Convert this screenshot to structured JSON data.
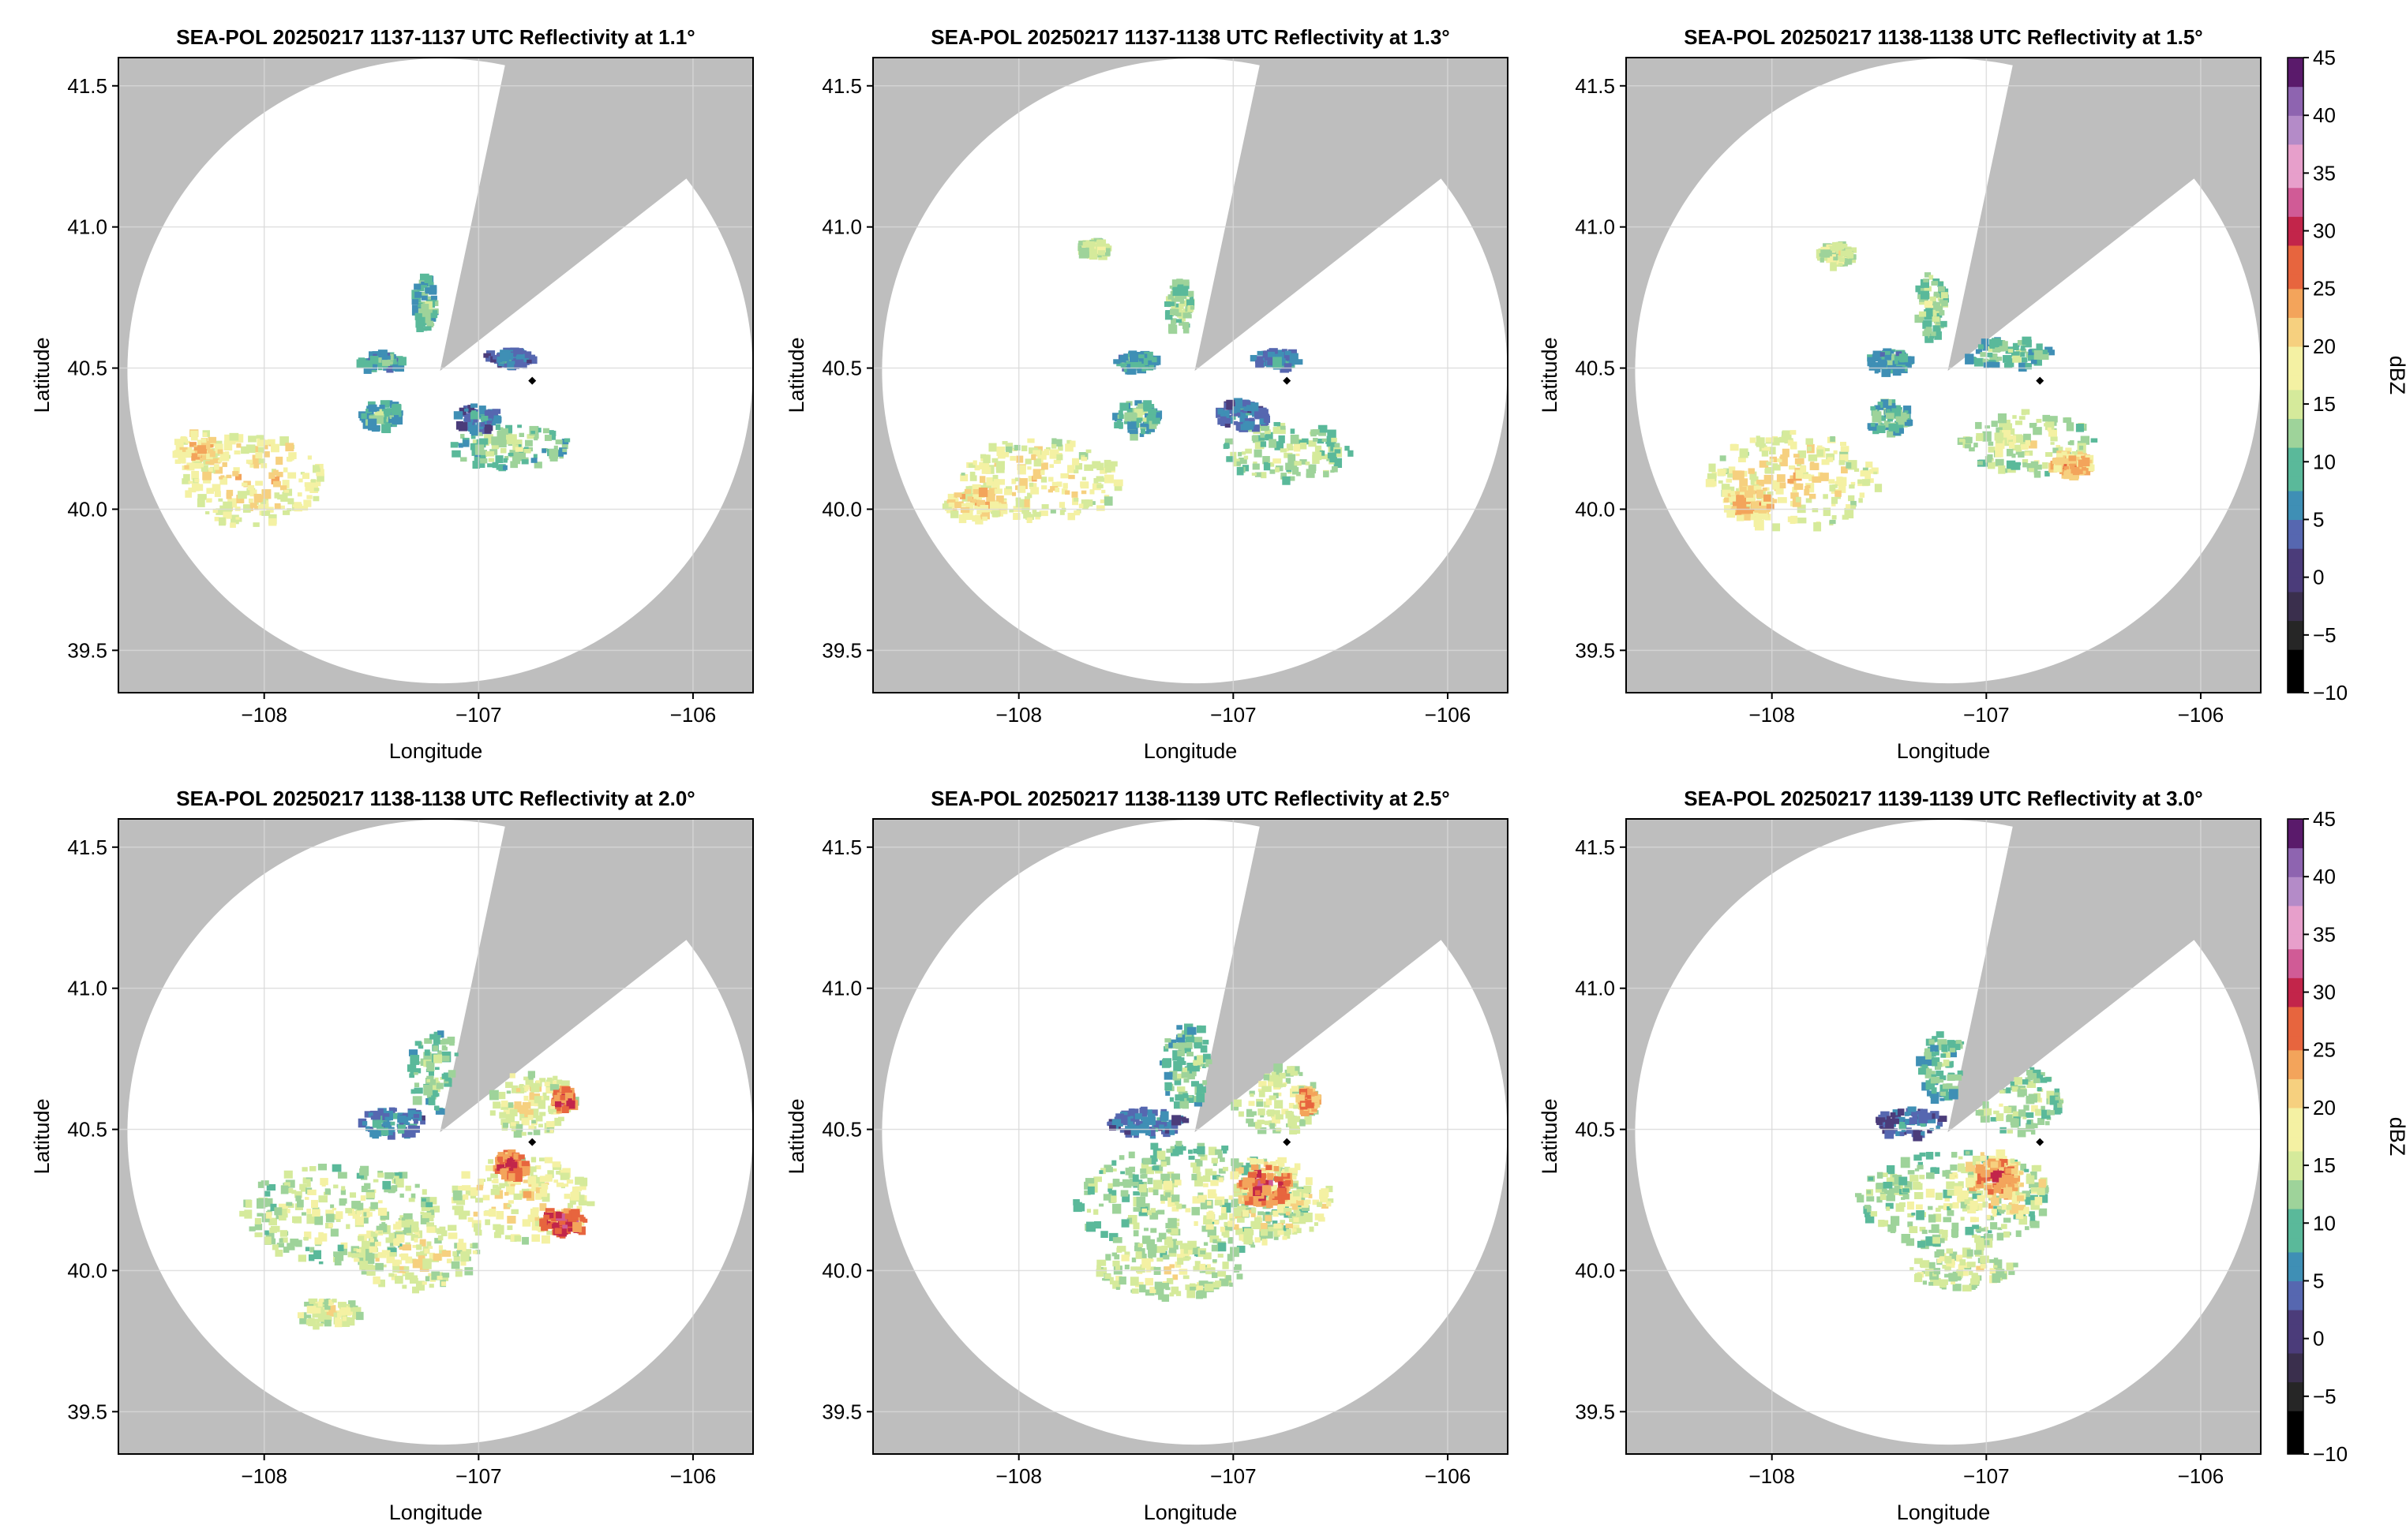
{
  "figure": {
    "xlabel": "Longitude",
    "ylabel": "Latitude",
    "x_ticks": [
      -108,
      -107,
      -106
    ],
    "x_tick_labels": [
      "−108",
      "−107",
      "−106"
    ],
    "y_ticks": [
      39.5,
      40.0,
      40.5,
      41.0,
      41.5
    ],
    "y_tick_labels": [
      "39.5",
      "40.0",
      "40.5",
      "41.0",
      "41.5"
    ],
    "xlim": [
      -108.68,
      -105.72
    ],
    "ylim": [
      39.35,
      41.6
    ],
    "radar_location": [
      -106.75,
      40.455
    ],
    "colors": {
      "background_outside_range": "#bebebe",
      "plot_background": "#ffffff",
      "grid": "#d9d9d9"
    }
  },
  "colorbar": {
    "label": "dBZ",
    "range": [
      -10,
      45
    ],
    "ticks": [
      -10,
      -5,
      0,
      5,
      10,
      15,
      20,
      25,
      30,
      35,
      40,
      45
    ],
    "tick_labels": [
      "−10",
      "−5",
      "0",
      "5",
      "10",
      "15",
      "20",
      "25",
      "30",
      "35",
      "40",
      "45"
    ],
    "palette": [
      "#000000",
      "#262626",
      "#3a2f4d",
      "#4b3c7a",
      "#5667b0",
      "#3f8fb5",
      "#5ab99a",
      "#9ed39a",
      "#d5ea9b",
      "#f4f1a3",
      "#f6d07f",
      "#f3a45b",
      "#e7653e",
      "#c2254a",
      "#d05b96",
      "#e79fcb",
      "#b48bc8",
      "#8e64b0",
      "#5a1a6b"
    ]
  },
  "chart_data": [
    {
      "type": "heatmap",
      "title": "SEA-POL 20250217 1137-1137 UTC Reflectivity at 1.1°",
      "elevation_deg": 1.1,
      "xlabel": "Longitude",
      "ylabel": "Latitude",
      "xlim": [
        -108.68,
        -105.72
      ],
      "ylim": [
        39.35,
        41.6
      ],
      "value_range_dBZ": [
        -10,
        45
      ],
      "echo_regions": [
        {
          "lon": -108.05,
          "lat": 40.1,
          "rx": 0.32,
          "ry": 0.17,
          "dbz": 16
        },
        {
          "lon": -108.3,
          "lat": 40.2,
          "rx": 0.12,
          "ry": 0.07,
          "dbz": 17
        },
        {
          "lon": -106.85,
          "lat": 40.22,
          "rx": 0.28,
          "ry": 0.08,
          "dbz": 9
        },
        {
          "lon": -107.0,
          "lat": 40.32,
          "rx": 0.1,
          "ry": 0.05,
          "dbz": 3
        },
        {
          "lon": -107.45,
          "lat": 40.33,
          "rx": 0.09,
          "ry": 0.05,
          "dbz": 7
        },
        {
          "lon": -107.25,
          "lat": 40.72,
          "rx": 0.05,
          "ry": 0.1,
          "dbz": 8
        },
        {
          "lon": -106.85,
          "lat": 40.53,
          "rx": 0.12,
          "ry": 0.03,
          "dbz": 3
        },
        {
          "lon": -107.45,
          "lat": 40.52,
          "rx": 0.1,
          "ry": 0.03,
          "dbz": 6
        }
      ]
    },
    {
      "type": "heatmap",
      "title": "SEA-POL 20250217 1137-1138 UTC Reflectivity at 1.3°",
      "elevation_deg": 1.3,
      "xlabel": "Longitude",
      "ylabel": "Latitude",
      "xlim": [
        -108.68,
        -105.72
      ],
      "ylim": [
        39.35,
        41.6
      ],
      "value_range_dBZ": [
        -10,
        45
      ],
      "echo_regions": [
        {
          "lon": -107.9,
          "lat": 40.1,
          "rx": 0.38,
          "ry": 0.15,
          "dbz": 15
        },
        {
          "lon": -108.2,
          "lat": 40.02,
          "rx": 0.14,
          "ry": 0.06,
          "dbz": 18
        },
        {
          "lon": -106.75,
          "lat": 40.2,
          "rx": 0.3,
          "ry": 0.1,
          "dbz": 11
        },
        {
          "lon": -106.95,
          "lat": 40.33,
          "rx": 0.12,
          "ry": 0.05,
          "dbz": 3
        },
        {
          "lon": -107.45,
          "lat": 40.32,
          "rx": 0.1,
          "ry": 0.06,
          "dbz": 8
        },
        {
          "lon": -107.25,
          "lat": 40.72,
          "rx": 0.06,
          "ry": 0.1,
          "dbz": 10
        },
        {
          "lon": -106.8,
          "lat": 40.53,
          "rx": 0.12,
          "ry": 0.03,
          "dbz": 4
        },
        {
          "lon": -107.45,
          "lat": 40.52,
          "rx": 0.1,
          "ry": 0.03,
          "dbz": 6
        },
        {
          "lon": -107.65,
          "lat": 40.92,
          "rx": 0.07,
          "ry": 0.03,
          "dbz": 12
        }
      ]
    },
    {
      "type": "heatmap",
      "title": "SEA-POL 20250217 1138-1138 UTC Reflectivity at 1.5°",
      "elevation_deg": 1.5,
      "xlabel": "Longitude",
      "ylabel": "Latitude",
      "xlim": [
        -108.68,
        -105.72
      ],
      "ylim": [
        39.35,
        41.6
      ],
      "value_range_dBZ": [
        -10,
        45
      ],
      "echo_regions": [
        {
          "lon": -107.9,
          "lat": 40.1,
          "rx": 0.4,
          "ry": 0.17,
          "dbz": 15
        },
        {
          "lon": -108.1,
          "lat": 40.02,
          "rx": 0.12,
          "ry": 0.06,
          "dbz": 19
        },
        {
          "lon": -106.8,
          "lat": 40.23,
          "rx": 0.32,
          "ry": 0.11,
          "dbz": 12
        },
        {
          "lon": -106.6,
          "lat": 40.15,
          "rx": 0.1,
          "ry": 0.05,
          "dbz": 20
        },
        {
          "lon": -106.9,
          "lat": 40.55,
          "rx": 0.2,
          "ry": 0.05,
          "dbz": 8
        },
        {
          "lon": -107.45,
          "lat": 40.32,
          "rx": 0.1,
          "ry": 0.06,
          "dbz": 8
        },
        {
          "lon": -107.25,
          "lat": 40.72,
          "rx": 0.07,
          "ry": 0.12,
          "dbz": 10
        },
        {
          "lon": -107.45,
          "lat": 40.52,
          "rx": 0.1,
          "ry": 0.04,
          "dbz": 6
        },
        {
          "lon": -107.7,
          "lat": 40.9,
          "rx": 0.08,
          "ry": 0.04,
          "dbz": 13
        }
      ]
    },
    {
      "type": "heatmap",
      "title": "SEA-POL 20250217 1138-1138 UTC Reflectivity at 2.0°",
      "elevation_deg": 2.0,
      "xlabel": "Longitude",
      "ylabel": "Latitude",
      "xlim": [
        -108.68,
        -105.72
      ],
      "ylim": [
        39.35,
        41.6
      ],
      "value_range_dBZ": [
        -10,
        45
      ],
      "echo_regions": [
        {
          "lon": -107.65,
          "lat": 40.2,
          "rx": 0.45,
          "ry": 0.18,
          "dbz": 12
        },
        {
          "lon": -107.3,
          "lat": 40.05,
          "rx": 0.3,
          "ry": 0.12,
          "dbz": 14
        },
        {
          "lon": -106.8,
          "lat": 40.25,
          "rx": 0.33,
          "ry": 0.15,
          "dbz": 15
        },
        {
          "lon": -106.6,
          "lat": 40.17,
          "rx": 0.1,
          "ry": 0.05,
          "dbz": 26
        },
        {
          "lon": -106.85,
          "lat": 40.37,
          "rx": 0.08,
          "ry": 0.05,
          "dbz": 24
        },
        {
          "lon": -106.75,
          "lat": 40.6,
          "rx": 0.2,
          "ry": 0.12,
          "dbz": 14
        },
        {
          "lon": -106.6,
          "lat": 40.6,
          "rx": 0.05,
          "ry": 0.04,
          "dbz": 25
        },
        {
          "lon": -107.2,
          "lat": 40.7,
          "rx": 0.12,
          "ry": 0.15,
          "dbz": 9
        },
        {
          "lon": -107.4,
          "lat": 40.52,
          "rx": 0.15,
          "ry": 0.05,
          "dbz": 4
        },
        {
          "lon": -107.7,
          "lat": 39.85,
          "rx": 0.15,
          "ry": 0.05,
          "dbz": 14
        }
      ]
    },
    {
      "type": "heatmap",
      "title": "SEA-POL 20250217 1138-1139 UTC Reflectivity at 2.5°",
      "elevation_deg": 2.5,
      "xlabel": "Longitude",
      "ylabel": "Latitude",
      "xlim": [
        -108.68,
        -105.72
      ],
      "ylim": [
        39.35,
        41.6
      ],
      "value_range_dBZ": [
        -10,
        45
      ],
      "echo_regions": [
        {
          "lon": -107.2,
          "lat": 40.25,
          "rx": 0.55,
          "ry": 0.2,
          "dbz": 11
        },
        {
          "lon": -106.85,
          "lat": 40.25,
          "rx": 0.32,
          "ry": 0.15,
          "dbz": 16
        },
        {
          "lon": -106.85,
          "lat": 40.3,
          "rx": 0.12,
          "ry": 0.07,
          "dbz": 24
        },
        {
          "lon": -107.3,
          "lat": 40.0,
          "rx": 0.35,
          "ry": 0.1,
          "dbz": 13
        },
        {
          "lon": -106.8,
          "lat": 40.6,
          "rx": 0.2,
          "ry": 0.12,
          "dbz": 13
        },
        {
          "lon": -106.65,
          "lat": 40.6,
          "rx": 0.05,
          "ry": 0.04,
          "dbz": 22
        },
        {
          "lon": -107.2,
          "lat": 40.72,
          "rx": 0.14,
          "ry": 0.15,
          "dbz": 9
        },
        {
          "lon": -107.4,
          "lat": 40.52,
          "rx": 0.18,
          "ry": 0.05,
          "dbz": 3
        }
      ]
    },
    {
      "type": "heatmap",
      "title": "SEA-POL 20250217 1139-1139 UTC Reflectivity at 3.0°",
      "elevation_deg": 3.0,
      "xlabel": "Longitude",
      "ylabel": "Latitude",
      "xlim": [
        -108.68,
        -105.72
      ],
      "ylim": [
        39.35,
        41.6
      ],
      "value_range_dBZ": [
        -10,
        45
      ],
      "echo_regions": [
        {
          "lon": -107.15,
          "lat": 40.25,
          "rx": 0.45,
          "ry": 0.17,
          "dbz": 11
        },
        {
          "lon": -106.95,
          "lat": 40.3,
          "rx": 0.22,
          "ry": 0.12,
          "dbz": 17
        },
        {
          "lon": -106.95,
          "lat": 40.33,
          "rx": 0.1,
          "ry": 0.06,
          "dbz": 23
        },
        {
          "lon": -107.1,
          "lat": 40.0,
          "rx": 0.25,
          "ry": 0.07,
          "dbz": 13
        },
        {
          "lon": -106.85,
          "lat": 40.6,
          "rx": 0.2,
          "ry": 0.12,
          "dbz": 11
        },
        {
          "lon": -107.2,
          "lat": 40.72,
          "rx": 0.12,
          "ry": 0.12,
          "dbz": 8
        },
        {
          "lon": -107.35,
          "lat": 40.52,
          "rx": 0.15,
          "ry": 0.05,
          "dbz": 2
        }
      ]
    }
  ]
}
